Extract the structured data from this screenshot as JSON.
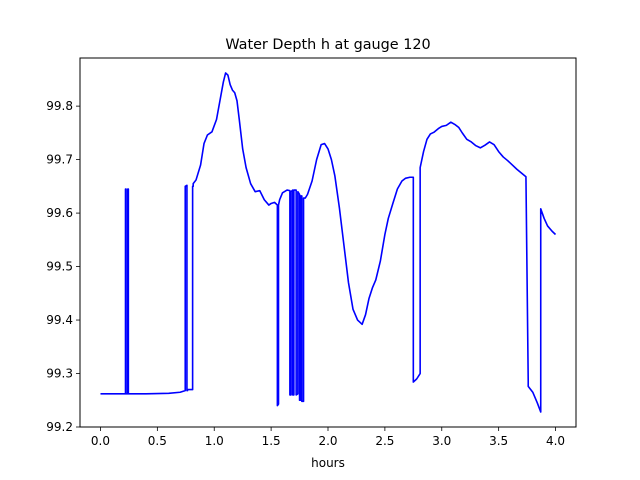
{
  "chart_data": {
    "type": "line",
    "title": "Water Depth h at gauge 120",
    "xlabel": "hours",
    "ylabel": "",
    "xlim": [
      -0.18,
      4.18
    ],
    "ylim": [
      99.2,
      99.89
    ],
    "xticks": [
      0.0,
      0.5,
      1.0,
      1.5,
      2.0,
      2.5,
      3.0,
      3.5,
      4.0
    ],
    "xtick_labels": [
      "0.0",
      "0.5",
      "1.0",
      "1.5",
      "2.0",
      "2.5",
      "3.0",
      "3.5",
      "4.0"
    ],
    "yticks": [
      99.2,
      99.3,
      99.4,
      99.5,
      99.6,
      99.7,
      99.8
    ],
    "ytick_labels": [
      "99.2",
      "99.3",
      "99.4",
      "99.5",
      "99.6",
      "99.7",
      "99.8"
    ],
    "grid": false,
    "series": [
      {
        "color": "#0000ff",
        "x": [
          0.0,
          0.22,
          0.22,
          0.225,
          0.225,
          0.24,
          0.24,
          0.245,
          0.245,
          0.4,
          0.6,
          0.7,
          0.745,
          0.745,
          0.76,
          0.76,
          0.765,
          0.765,
          0.81,
          0.81,
          0.815,
          0.815,
          0.84,
          0.88,
          0.91,
          0.94,
          0.98,
          1.02,
          1.05,
          1.08,
          1.1,
          1.12,
          1.14,
          1.16,
          1.18,
          1.2,
          1.22,
          1.25,
          1.28,
          1.32,
          1.36,
          1.4,
          1.44,
          1.48,
          1.5,
          1.53,
          1.555,
          1.555,
          1.565,
          1.565,
          1.575,
          1.6,
          1.64,
          1.665,
          1.665,
          1.675,
          1.675,
          1.69,
          1.69,
          1.7,
          1.7,
          1.72,
          1.72,
          1.735,
          1.735,
          1.75,
          1.75,
          1.76,
          1.76,
          1.77,
          1.77,
          1.785,
          1.785,
          1.8,
          1.82,
          1.86,
          1.9,
          1.94,
          1.97,
          2.0,
          2.03,
          2.06,
          2.1,
          2.14,
          2.18,
          2.22,
          2.26,
          2.3,
          2.33,
          2.36,
          2.39,
          2.42,
          2.46,
          2.5,
          2.53,
          2.57,
          2.61,
          2.65,
          2.68,
          2.72,
          2.75,
          2.75,
          2.78,
          2.81,
          2.81,
          2.84,
          2.87,
          2.9,
          2.93,
          2.97,
          3.0,
          3.04,
          3.08,
          3.12,
          3.15,
          3.18,
          3.22,
          3.26,
          3.3,
          3.34,
          3.38,
          3.42,
          3.46,
          3.5,
          3.54,
          3.58,
          3.62,
          3.66,
          3.7,
          3.74,
          3.76,
          3.76,
          3.8,
          3.84,
          3.87,
          3.87,
          3.9,
          3.93,
          3.97,
          4.0
        ],
        "values": [
          99.262,
          99.262,
          99.645,
          99.645,
          99.262,
          99.262,
          99.645,
          99.645,
          99.262,
          99.262,
          99.263,
          99.265,
          99.268,
          99.65,
          99.652,
          99.268,
          99.268,
          99.27,
          99.27,
          99.65,
          99.65,
          99.655,
          99.662,
          99.69,
          99.73,
          99.746,
          99.752,
          99.775,
          99.81,
          99.845,
          99.862,
          99.858,
          99.84,
          99.83,
          99.825,
          99.81,
          99.775,
          99.72,
          99.685,
          99.655,
          99.64,
          99.642,
          99.625,
          99.615,
          99.618,
          99.62,
          99.615,
          99.24,
          99.243,
          99.615,
          99.625,
          99.638,
          99.643,
          99.642,
          99.26,
          99.26,
          99.64,
          99.643,
          99.26,
          99.26,
          99.643,
          99.643,
          99.26,
          99.262,
          99.64,
          99.635,
          99.25,
          99.25,
          99.632,
          99.632,
          99.248,
          99.248,
          99.628,
          99.628,
          99.635,
          99.66,
          99.7,
          99.728,
          99.73,
          99.72,
          99.7,
          99.67,
          99.61,
          99.54,
          99.47,
          99.42,
          99.4,
          99.392,
          99.41,
          99.44,
          99.46,
          99.475,
          99.51,
          99.56,
          99.59,
          99.618,
          99.645,
          99.66,
          99.665,
          99.667,
          99.667,
          99.284,
          99.29,
          99.3,
          99.685,
          99.715,
          99.738,
          99.748,
          99.751,
          99.758,
          99.762,
          99.764,
          99.77,
          99.765,
          99.76,
          99.75,
          99.738,
          99.733,
          99.726,
          99.722,
          99.727,
          99.733,
          99.728,
          99.715,
          99.705,
          99.698,
          99.69,
          99.682,
          99.675,
          99.668,
          99.286,
          99.276,
          99.265,
          99.245,
          99.228,
          99.608,
          99.59,
          99.576,
          99.566,
          99.56
        ]
      }
    ]
  }
}
